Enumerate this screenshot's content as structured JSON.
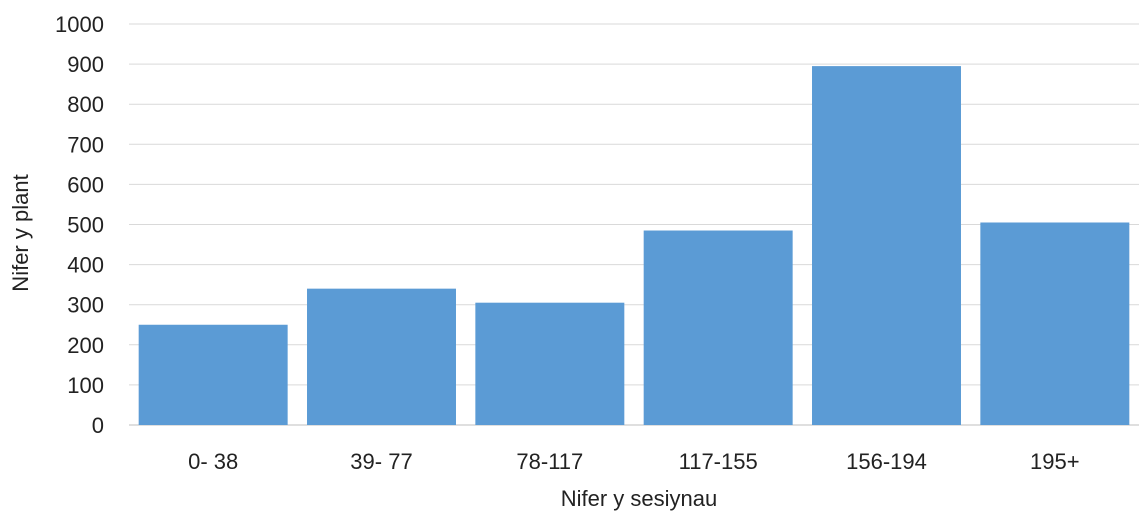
{
  "chart_data": {
    "type": "bar",
    "categories": [
      "0- 38",
      "39- 77",
      "78-117",
      "117-155",
      "156-194",
      "195+"
    ],
    "values": [
      250,
      340,
      305,
      485,
      895,
      505
    ],
    "xlabel": "Nifer y sesiynau",
    "ylabel": "Nifer y plant",
    "ylim": [
      0,
      1000
    ],
    "yticks": [
      0,
      100,
      200,
      300,
      400,
      500,
      600,
      700,
      800,
      900,
      1000
    ],
    "grid": true,
    "legend": "none",
    "bar_color": "#5b9bd5",
    "grid_color": "#d9d9d9"
  }
}
